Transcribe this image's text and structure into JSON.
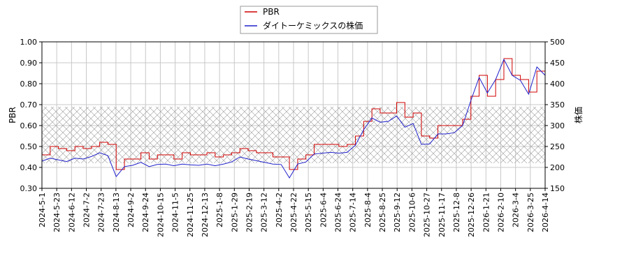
{
  "chart_data": {
    "type": "line",
    "xlabel": "",
    "ylabel_left": "PBR",
    "ylabel_right": "株価",
    "ylim_left": [
      0.3,
      1.0
    ],
    "ylim_right": [
      150,
      500
    ],
    "yticks_left": [
      "0.30",
      "0.40",
      "0.50",
      "0.60",
      "0.70",
      "0.80",
      "0.90",
      "1.00"
    ],
    "yticks_right": [
      "150",
      "200",
      "250",
      "300",
      "350",
      "400",
      "450",
      "500"
    ],
    "x_tick_labels": [
      "2024-5-1",
      "2024-5-23",
      "2024-6-12",
      "2024-7-2",
      "2024-7-23",
      "2024-8-13",
      "2024-9-2",
      "2024-9-24",
      "2024-10-15",
      "2024-11-5",
      "2024-11-25",
      "2024-12-13",
      "2025-1-8",
      "2025-1-29",
      "2025-2-19",
      "2025-3-12",
      "2025-4-2",
      "2025-4-22",
      "2025-5-15",
      "2025-6-4",
      "2025-6-24",
      "2025-7-14",
      "2025-8-4",
      "2025-8-25",
      "2025-9-12",
      "2025-10-6",
      "2025-10-27",
      "2025-11-17",
      "2025-12-8",
      "2025-12-26",
      "2026-1-21",
      "2026-2-10",
      "2026-3-4",
      "2026-3-25",
      "2026-4-14"
    ],
    "grid": true,
    "legend_position": "top-center",
    "shaded_band_left": [
      0.42,
      0.69
    ],
    "series": [
      {
        "name": "PBR",
        "axis": "left",
        "color": "#d00000",
        "values": [
          0.46,
          0.5,
          0.49,
          0.48,
          0.5,
          0.49,
          0.5,
          0.52,
          0.51,
          0.39,
          0.44,
          0.44,
          0.47,
          0.44,
          0.46,
          0.46,
          0.44,
          0.47,
          0.46,
          0.46,
          0.47,
          0.45,
          0.46,
          0.47,
          0.49,
          0.48,
          0.47,
          0.47,
          0.45,
          0.45,
          0.39,
          0.44,
          0.46,
          0.51,
          0.51,
          0.51,
          0.5,
          0.51,
          0.55,
          0.62,
          0.68,
          0.66,
          0.66,
          0.71,
          0.64,
          0.66,
          0.55,
          0.54,
          0.6,
          0.6,
          0.6,
          0.63,
          0.74,
          0.84,
          0.74,
          0.82,
          0.92,
          0.84,
          0.82,
          0.76,
          0.86,
          0.86
        ]
      },
      {
        "name": "ダイトーケミックスの株価",
        "axis": "right",
        "color": "#2020cc",
        "values": [
          215,
          222,
          218,
          214,
          222,
          220,
          226,
          235,
          228,
          178,
          202,
          205,
          212,
          202,
          207,
          208,
          204,
          208,
          206,
          205,
          208,
          204,
          208,
          213,
          225,
          220,
          216,
          212,
          208,
          207,
          175,
          208,
          213,
          232,
          234,
          236,
          234,
          236,
          253,
          290,
          318,
          308,
          310,
          323,
          296,
          305,
          255,
          256,
          280,
          280,
          283,
          300,
          360,
          415,
          378,
          410,
          458,
          420,
          408,
          375,
          440,
          420
        ]
      }
    ]
  }
}
